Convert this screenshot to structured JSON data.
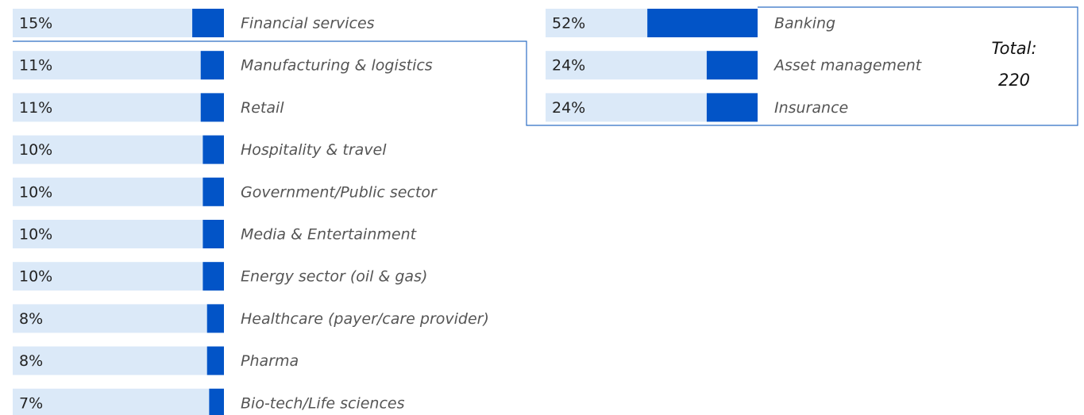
{
  "chart_data": [
    {
      "type": "bar",
      "orientation": "horizontal",
      "color": "#0254c7",
      "track_color": "#dbe9f8",
      "xlim": [
        0,
        100
      ],
      "categories": [
        "Financial services",
        "Manufacturing & logistics",
        "Retail",
        "Hospitality & travel",
        "Government/Public sector",
        "Media & Entertainment",
        "Energy sector (oil & gas)",
        "Healthcare (payer/care provider)",
        "Pharma",
        "Bio-tech/Life sciences"
      ],
      "values": [
        15,
        11,
        11,
        10,
        10,
        10,
        10,
        8,
        8,
        7
      ],
      "value_labels": [
        "15%",
        "11%",
        "11%",
        "10%",
        "10%",
        "10%",
        "10%",
        "8%",
        "8%",
        "7%"
      ]
    },
    {
      "type": "bar",
      "orientation": "horizontal",
      "color": "#0254c7",
      "track_color": "#dbe9f8",
      "xlim": [
        0,
        100
      ],
      "categories": [
        "Banking",
        "Asset management",
        "Insurance"
      ],
      "values": [
        52,
        24,
        24
      ],
      "value_labels": [
        "52%",
        "24%",
        "24%"
      ],
      "total_label": "Total:",
      "total": 220
    }
  ]
}
